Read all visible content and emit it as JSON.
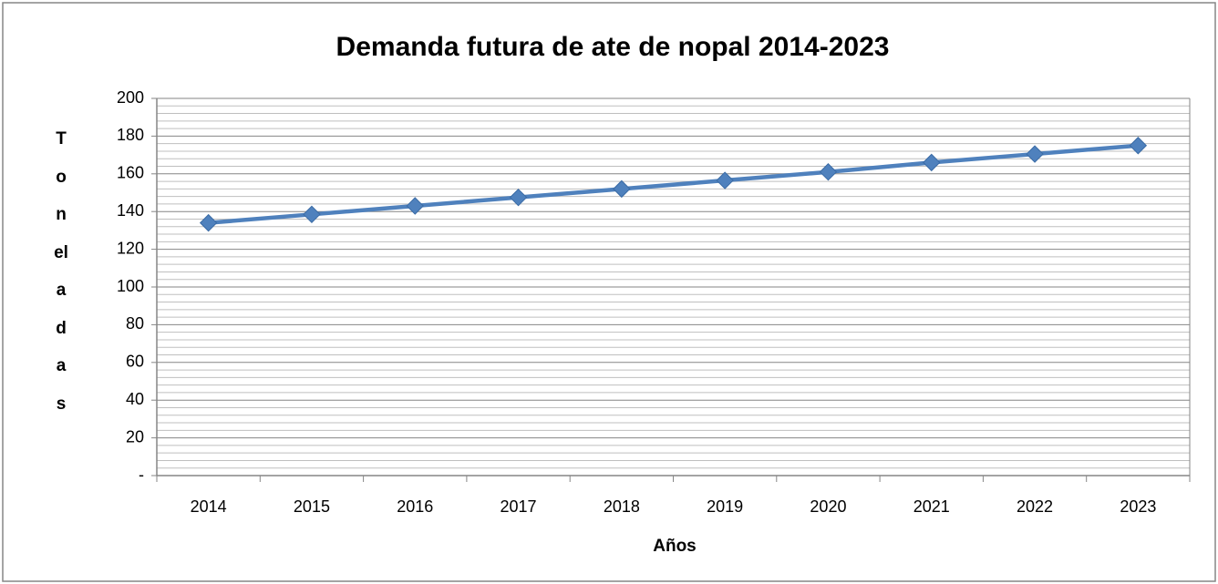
{
  "chart_data": {
    "type": "line",
    "title": "Demanda futura de ate de nopal 2014-2023",
    "x_label": "Años",
    "y_label": "Toneladas",
    "categories": [
      "2014",
      "2015",
      "2016",
      "2017",
      "2018",
      "2019",
      "2020",
      "2021",
      "2022",
      "2023"
    ],
    "series": [
      {
        "name": "Demanda",
        "color": "#4f81bd",
        "values": [
          134,
          138.5,
          143,
          147.5,
          152,
          156.5,
          161,
          166,
          170.5,
          175
        ]
      }
    ],
    "ylim": [
      0,
      200
    ],
    "yticks": [
      {
        "value": 0,
        "label": "-"
      },
      20,
      40,
      60,
      80,
      100,
      120,
      140,
      160,
      180,
      200
    ],
    "grid": true,
    "minor_grid": true,
    "marker": "diamond"
  }
}
